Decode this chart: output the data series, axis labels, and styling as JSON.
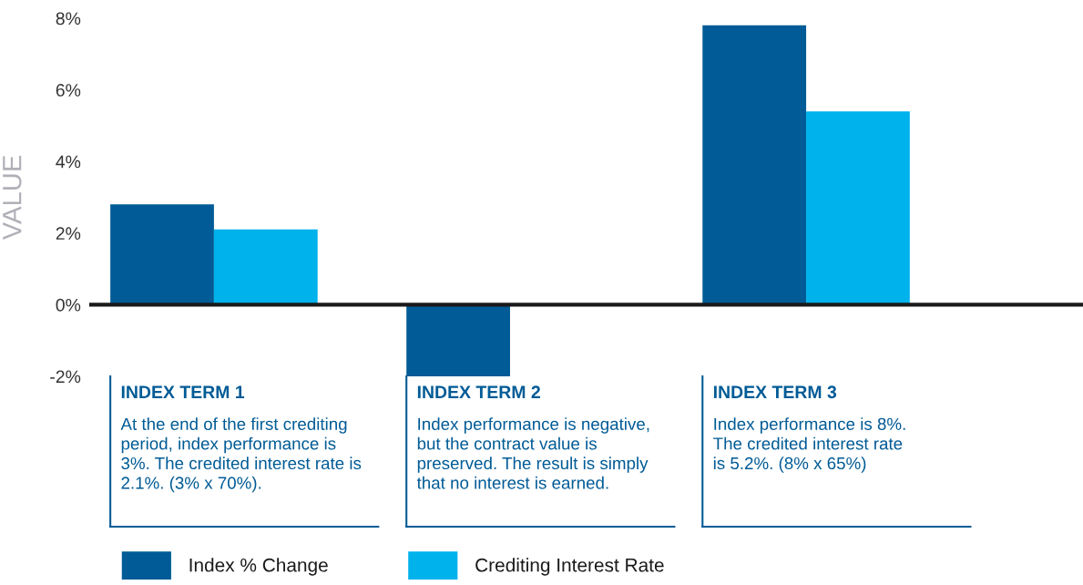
{
  "chart_data": {
    "type": "bar",
    "ylabel": "VALUE",
    "categories": [
      "INDEX TERM 1",
      "INDEX TERM 2",
      "INDEX TERM 3"
    ],
    "series": [
      {
        "name": "Index % Change",
        "color": "#005b96",
        "values": [
          2.8,
          -2,
          7.8
        ]
      },
      {
        "name": "Crediting Interest Rate",
        "color": "#00b2ec",
        "values": [
          2.1,
          0,
          5.4
        ]
      }
    ],
    "ylim": [
      -2,
      8
    ],
    "yticks": [
      {
        "value": -2,
        "label": "-2%"
      },
      {
        "value": 0,
        "label": "0%"
      },
      {
        "value": 2,
        "label": "2%"
      },
      {
        "value": 4,
        "label": "4%"
      },
      {
        "value": 6,
        "label": "6%"
      },
      {
        "value": 8,
        "label": "8%"
      }
    ],
    "annotations": [
      "At the end of the first crediting\nperiod, index performance is\n3%. The credited interest rate is\n2.1%. (3% x 70%).",
      "Index performance is negative,\nbut the contract value is\npreserved. The result is simply\nthat no interest is earned.",
      "Index performance is 8%.\nThe credited interest rate\nis 5.2%. (8% x 65%)"
    ],
    "ref_lines": [
      {
        "axis": "y",
        "value": 0,
        "color": "#1a1a1a"
      }
    ],
    "grid": false,
    "legend": "bottom"
  }
}
